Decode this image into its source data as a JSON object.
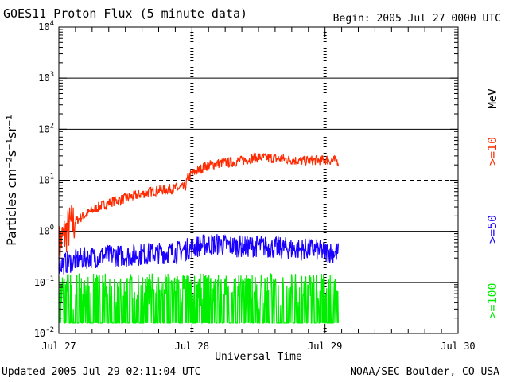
{
  "header": {
    "title": "GOES11 Proton Flux (5 minute data)",
    "begin": "Begin: 2005 Jul 27 0000 UTC"
  },
  "footer": {
    "updated": "Updated 2005 Jul 29 02:11:04 UTC",
    "credit": "NOAA/SEC Boulder, CO USA"
  },
  "chart_data": {
    "type": "line",
    "title": "GOES11 Proton Flux (5 minute data)",
    "xlabel": "Universal Time",
    "ylabel": "Particles cm⁻²s⁻¹sr⁻¹",
    "y_scale": "log",
    "ylim": [
      0.01,
      10000
    ],
    "xlim_days": [
      0,
      3
    ],
    "x_ticks": [
      "Jul 27",
      "Jul 28",
      "Jul 29",
      "Jul 30"
    ],
    "y_ticks": [
      {
        "mantissa": "10",
        "exp": "-2"
      },
      {
        "mantissa": "10",
        "exp": "-1"
      },
      {
        "mantissa": "10",
        "exp": "0"
      },
      {
        "mantissa": "10",
        "exp": "1"
      },
      {
        "mantissa": "10",
        "exp": "2"
      },
      {
        "mantissa": "10",
        "exp": "3"
      },
      {
        "mantissa": "10",
        "exp": "4"
      }
    ],
    "grid": {
      "solid_at": [
        0.1,
        1,
        100,
        1000
      ],
      "dashed_at": [
        10
      ]
    },
    "unit_label": "MeV",
    "series": [
      {
        "name": ">=10",
        "color": "#ff2a00",
        "x": [
          0.0,
          0.05,
          0.1,
          0.2,
          0.3,
          0.4,
          0.5,
          0.6,
          0.7,
          0.8,
          0.9,
          0.95,
          0.97,
          1.0,
          1.05,
          1.1,
          1.2,
          1.3,
          1.4,
          1.5,
          1.6,
          1.7,
          1.8,
          1.9,
          2.0,
          2.1
        ],
        "y": [
          0.5,
          0.9,
          1.4,
          2.1,
          3.0,
          3.8,
          4.4,
          5.2,
          6.1,
          6.6,
          7.0,
          7.3,
          11.0,
          13.5,
          15.5,
          19.0,
          21.5,
          22.5,
          25.0,
          28.0,
          27.0,
          26.0,
          24.0,
          24.5,
          25.0,
          24.0
        ]
      },
      {
        "name": ">=50",
        "color": "#1a00ff",
        "x": [
          0.0,
          0.1,
          0.2,
          0.3,
          0.4,
          0.5,
          0.6,
          0.7,
          0.8,
          0.9,
          1.0,
          1.1,
          1.2,
          1.3,
          1.4,
          1.5,
          1.6,
          1.7,
          1.8,
          1.9,
          2.0,
          2.1
        ],
        "y": [
          0.22,
          0.26,
          0.3,
          0.32,
          0.34,
          0.33,
          0.35,
          0.37,
          0.38,
          0.4,
          0.48,
          0.55,
          0.56,
          0.52,
          0.5,
          0.52,
          0.48,
          0.47,
          0.44,
          0.45,
          0.4,
          0.38
        ]
      },
      {
        "name": ">=100",
        "color": "#00ee00",
        "x": [
          0.0,
          0.5,
          1.0,
          1.5,
          2.0,
          2.1
        ],
        "y": [
          0.05,
          0.05,
          0.05,
          0.05,
          0.05,
          0.05
        ]
      }
    ]
  }
}
